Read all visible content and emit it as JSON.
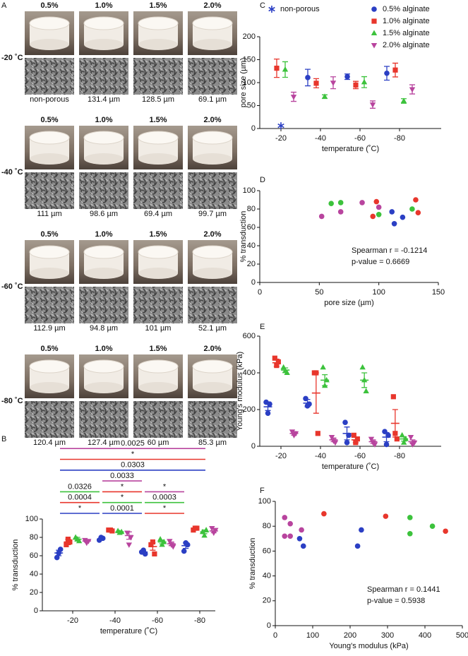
{
  "panel_a": {
    "panel": "A",
    "concentrations": [
      "0.5%",
      "1.0%",
      "1.5%",
      "2.0%"
    ],
    "rows": [
      {
        "temperature": "-20 ˚C",
        "pore_sizes": [
          "non-porous",
          "131.4 µm",
          "128.5 µm",
          "69.1 µm"
        ]
      },
      {
        "temperature": "-40 ˚C",
        "pore_sizes": [
          "111 µm",
          "98.6 µm",
          "69.4 µm",
          "99.7 µm"
        ]
      },
      {
        "temperature": "-60 ˚C",
        "pore_sizes": [
          "112.9 µm",
          "94.8 µm",
          "101 µm",
          "52.1 µm"
        ]
      },
      {
        "temperature": "-80 ˚C",
        "pore_sizes": [
          "120.4 µm",
          "127.4 µm",
          "60 µm",
          "85.3 µm"
        ]
      }
    ]
  },
  "chart_data": [
    {
      "panel": "B",
      "type": "dot",
      "categories": [
        "-20",
        "-40",
        "-60",
        "-80"
      ],
      "xlabel": "temperature (˚C)",
      "ylabel": "% transduction",
      "ylim": [
        0,
        100
      ],
      "yticks": [
        0,
        20,
        40,
        60,
        80,
        100
      ],
      "series": [
        {
          "color": "#2b3fc4",
          "marker": "circle",
          "values": [
            [
              58,
              63,
              67
            ],
            [
              77,
              80,
              79
            ],
            [
              64,
              66,
              62
            ],
            [
              65,
              74,
              72
            ]
          ],
          "means": [
            63,
            78,
            64,
            71
          ],
          "errors": [
            3,
            1,
            1,
            3
          ]
        },
        {
          "color": "#e8362c",
          "marker": "square",
          "values": [
            [
              72,
              78,
              75
            ],
            [
              88,
              88,
              87
            ],
            [
              72,
              75,
              62
            ],
            [
              88,
              90,
              90
            ]
          ],
          "means": [
            75,
            88,
            70,
            89
          ],
          "errors": [
            3,
            1,
            4,
            1
          ]
        },
        {
          "color": "#3cc23c",
          "marker": "triangle",
          "values": [
            [
              80,
              78,
              76
            ],
            [
              87,
              85,
              86
            ],
            [
              78,
              72,
              75
            ],
            [
              86,
              82,
              88
            ]
          ],
          "means": [
            78,
            86,
            75,
            86
          ],
          "errors": [
            2,
            1,
            2,
            2
          ]
        },
        {
          "color": "#b8449e",
          "marker": "triangle-down",
          "values": [
            [
              77,
              74,
              76
            ],
            [
              85,
              72,
              80
            ],
            [
              76,
              72,
              70
            ],
            [
              90,
              85,
              88
            ]
          ],
          "means": [
            76,
            82,
            73,
            87
          ],
          "errors": [
            1,
            4,
            2,
            2
          ]
        }
      ],
      "brackets": [
        {
          "label": "*",
          "color": "#2b3fc4",
          "from": 0,
          "to": 1
        },
        {
          "label": "0.0001",
          "color": "#2b3fc4",
          "from": 1,
          "to": 2
        },
        {
          "label": "*",
          "color": "#e8362c",
          "from": 2,
          "to": 3
        },
        {
          "label": "0.0004",
          "color": "#e8362c",
          "from": 0,
          "to": 1
        },
        {
          "label": "*",
          "color": "#3cc23c",
          "from": 1,
          "to": 2
        },
        {
          "label": "0.0003",
          "color": "#3cc23c",
          "from": 2,
          "to": 3
        },
        {
          "label": "0.0326",
          "color": "#3cc23c",
          "from": 0,
          "to": 1
        },
        {
          "label": "*",
          "color": "#e8362c",
          "from": 1,
          "to": 2
        },
        {
          "label": "*",
          "color": "#b8449e",
          "from": 2,
          "to": 3
        },
        {
          "label": "0.0033",
          "color": "#b8449e",
          "from": 1,
          "to": 2
        },
        {
          "label": "0.0303",
          "color": "#2b3fc4",
          "from": 0,
          "to": 3
        },
        {
          "label": "*",
          "color": "#e8362c",
          "from": 0,
          "to": 3
        },
        {
          "label": "0.0025",
          "color": "#b8449e",
          "from": 0,
          "to": 3
        }
      ]
    },
    {
      "panel": "C",
      "type": "errorbar",
      "categories": [
        "-20",
        "-40",
        "-60",
        "-80"
      ],
      "xlabel": "temperature (˚C)",
      "ylabel": "pore size (µm)",
      "ylim": [
        0,
        200
      ],
      "yticks": [
        0,
        50,
        100,
        150,
        200
      ],
      "series": [
        {
          "name": "non-porous",
          "color": "#2b3fc4",
          "marker": "asterisk",
          "means": [
            6,
            null,
            null,
            null
          ]
        },
        {
          "name": "0.5% alginate",
          "color": "#2b3fc4",
          "marker": "circle",
          "means": [
            null,
            111,
            112.9,
            120.4
          ],
          "errors": [
            null,
            18,
            6,
            15
          ]
        },
        {
          "name": "1.0% alginate",
          "color": "#e8362c",
          "marker": "square",
          "means": [
            131.4,
            98.6,
            94.8,
            127.4
          ],
          "errors": [
            20,
            10,
            8,
            15
          ]
        },
        {
          "name": "1.5% alginate",
          "color": "#3cc23c",
          "marker": "triangle",
          "means": [
            128.5,
            69.4,
            101,
            60
          ],
          "errors": [
            17,
            4,
            12,
            5
          ]
        },
        {
          "name": "2.0% alginate",
          "color": "#b8449e",
          "marker": "triangle-down",
          "means": [
            69.1,
            99.7,
            52.1,
            85.3
          ],
          "errors": [
            10,
            13,
            8,
            10
          ]
        }
      ]
    },
    {
      "panel": "D",
      "type": "scatter",
      "xlabel": "pore size (µm)",
      "ylabel": "% transduction",
      "xlim": [
        0,
        150
      ],
      "xticks": [
        0,
        50,
        100,
        150
      ],
      "ylim": [
        0,
        100
      ],
      "yticks": [
        0,
        20,
        40,
        60,
        80,
        100
      ],
      "annotations": [
        "Spearman r = -0.1214",
        "p-value = 0.6669"
      ],
      "series": [
        {
          "color": "#b8449e",
          "x": [
            52,
            68,
            86,
            100
          ],
          "values": [
            72,
            77,
            87,
            82
          ]
        },
        {
          "color": "#3cc23c",
          "x": [
            60,
            68,
            100,
            128
          ],
          "values": [
            86,
            87,
            74,
            80
          ]
        },
        {
          "color": "#e8362c",
          "x": [
            95,
            98,
            131,
            133
          ],
          "values": [
            72,
            88,
            90,
            76
          ]
        },
        {
          "color": "#2b3fc4",
          "x": [
            113,
            120,
            111
          ],
          "values": [
            64,
            71,
            77
          ]
        }
      ]
    },
    {
      "panel": "E",
      "type": "dot",
      "categories": [
        "-20",
        "-40",
        "-60",
        "-80"
      ],
      "xlabel": "temperature (˚C)",
      "ylabel": "Young's modulus (kPa)",
      "ylim": [
        0,
        600
      ],
      "yticks": [
        0,
        200,
        400,
        600
      ],
      "series": [
        {
          "color": "#2b3fc4",
          "marker": "circle",
          "values": [
            [
              240,
              180,
              230
            ],
            [
              260,
              220,
              230
            ],
            [
              130,
              20,
              60
            ],
            [
              80,
              10,
              60
            ]
          ],
          "means": [
            215,
            235,
            70,
            50
          ],
          "errors": [
            20,
            20,
            35,
            25
          ]
        },
        {
          "color": "#e8362c",
          "marker": "square",
          "values": [
            [
              480,
              440,
              460
            ],
            [
              400,
              400,
              70
            ],
            [
              60,
              20,
              40
            ],
            [
              270,
              70,
              40
            ]
          ],
          "means": [
            455,
            290,
            35,
            125
          ],
          "errors": [
            20,
            110,
            15,
            75
          ]
        },
        {
          "color": "#3cc23c",
          "marker": "triangle",
          "values": [
            [
              430,
              410,
              400
            ],
            [
              430,
              330,
              360
            ],
            [
              430,
              360,
              300
            ],
            [
              60,
              20,
              40
            ]
          ],
          "means": [
            415,
            360,
            360,
            40
          ],
          "errors": [
            12,
            30,
            40,
            12
          ]
        },
        {
          "color": "#b8449e",
          "marker": "triangle-down",
          "values": [
            [
              80,
              60,
              70
            ],
            [
              50,
              30,
              20
            ],
            [
              40,
              20,
              10
            ],
            [
              50,
              10,
              20
            ]
          ],
          "means": [
            70,
            35,
            25,
            25
          ],
          "errors": [
            10,
            10,
            10,
            10
          ]
        }
      ]
    },
    {
      "panel": "F",
      "type": "scatter",
      "xlabel": "Young's modulus (kPa)",
      "ylabel": "% transduction",
      "xlim": [
        0,
        500
      ],
      "xticks": [
        0,
        100,
        200,
        300,
        400,
        500
      ],
      "ylim": [
        0,
        100
      ],
      "yticks": [
        0,
        20,
        40,
        60,
        80,
        100
      ],
      "annotations": [
        "Spearman r = 0.1441",
        "p-value = 0.5938"
      ],
      "series": [
        {
          "color": "#b8449e",
          "x": [
            25,
            40,
            25,
            40,
            70
          ],
          "values": [
            87,
            82,
            72,
            72,
            77
          ]
        },
        {
          "color": "#3cc23c",
          "x": [
            360,
            420,
            360
          ],
          "values": [
            87,
            80,
            74
          ]
        },
        {
          "color": "#e8362c",
          "x": [
            130,
            295,
            455
          ],
          "values": [
            90,
            88,
            76
          ]
        },
        {
          "color": "#2b3fc4",
          "x": [
            65,
            75,
            230,
            220
          ],
          "values": [
            70,
            64,
            77,
            64
          ]
        }
      ]
    }
  ]
}
